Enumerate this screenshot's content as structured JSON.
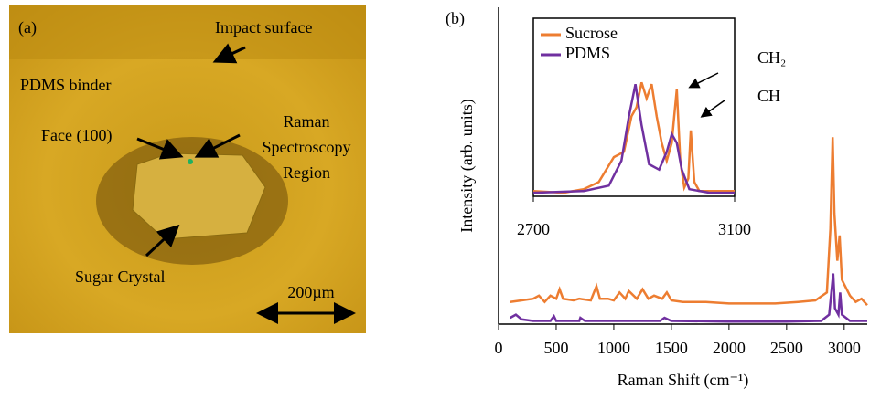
{
  "image_panel": {
    "panel_label": "(a)",
    "labels": [
      "Impact surface",
      "PDMS binder",
      "Face (100)",
      "Sugar Crystal"
    ],
    "region_label": [
      "Raman",
      "Spectroscopy",
      "Region"
    ],
    "scale_bar": "200µm"
  },
  "chart_data": [
    {
      "type": "line",
      "panel_label": "(b)",
      "x_label": "Raman Shift (cm⁻¹)",
      "y_label": "Intensity (arb. units)",
      "xlim": [
        0,
        3200
      ],
      "xticks": [
        0,
        500,
        1000,
        1500,
        2000,
        2500,
        3000
      ],
      "ylim": [
        0,
        100
      ],
      "series": [
        {
          "color": "#ed7d31",
          "x": [
            100,
            200,
            300,
            350,
            400,
            450,
            500,
            530,
            560,
            650,
            700,
            800,
            850,
            880,
            950,
            1000,
            1050,
            1100,
            1130,
            1200,
            1250,
            1300,
            1350,
            1420,
            1460,
            1500,
            1600,
            1800,
            2000,
            2200,
            2400,
            2600,
            2750,
            2850,
            2880,
            2900,
            2915,
            2940,
            2960,
            2980,
            3050,
            3100,
            3150,
            3200
          ],
          "values": [
            7,
            7.5,
            8,
            9,
            7,
            9,
            8,
            11,
            8,
            7.5,
            8,
            7.5,
            12,
            8,
            8,
            7.5,
            10,
            8,
            10.5,
            8,
            11,
            8,
            9,
            8,
            10,
            7.5,
            7,
            7,
            6.5,
            6.5,
            6.5,
            7,
            7.5,
            10,
            30,
            59,
            35,
            20,
            28,
            14,
            9,
            7,
            8,
            6
          ]
        },
        {
          "color": "#7030a0",
          "x": [
            100,
            150,
            200,
            300,
            450,
            480,
            500,
            700,
            710,
            750,
            1000,
            1400,
            1440,
            1500,
            2000,
            2500,
            2800,
            2870,
            2905,
            2920,
            2950,
            2965,
            2980,
            3050,
            3200
          ],
          "values": [
            2,
            3,
            1.5,
            1,
            1,
            2.5,
            1,
            1,
            2,
            1,
            1,
            1,
            2,
            1,
            0.8,
            0.8,
            1,
            3,
            16,
            5,
            3,
            10,
            3,
            1,
            1
          ]
        }
      ]
    },
    {
      "type": "line",
      "xlim": [
        2700,
        3100
      ],
      "xticks": [
        2700,
        3100
      ],
      "ylim": [
        0,
        100
      ],
      "series": [
        {
          "name": "Sucrose",
          "color": "#ed7d31",
          "x": [
            2700,
            2760,
            2800,
            2830,
            2860,
            2880,
            2895,
            2905,
            2915,
            2925,
            2935,
            2945,
            2955,
            2965,
            2975,
            2980,
            2985,
            2992,
            3000,
            3008,
            3013,
            3020,
            3030,
            3100
          ],
          "values": [
            3,
            2,
            4,
            8,
            22,
            25,
            45,
            50,
            64,
            55,
            63,
            45,
            30,
            20,
            30,
            45,
            60,
            20,
            5,
            10,
            37,
            8,
            3,
            3
          ]
        },
        {
          "name": "PDMS",
          "color": "#7030a0",
          "x": [
            2700,
            2800,
            2850,
            2875,
            2890,
            2903,
            2915,
            2930,
            2950,
            2965,
            2975,
            2985,
            2995,
            3010,
            3050,
            3100
          ],
          "values": [
            2,
            3,
            6,
            20,
            45,
            63,
            40,
            18,
            15,
            25,
            35,
            30,
            15,
            4,
            2,
            2
          ]
        }
      ],
      "annotations": [
        "CH₂",
        "CH"
      ]
    }
  ]
}
